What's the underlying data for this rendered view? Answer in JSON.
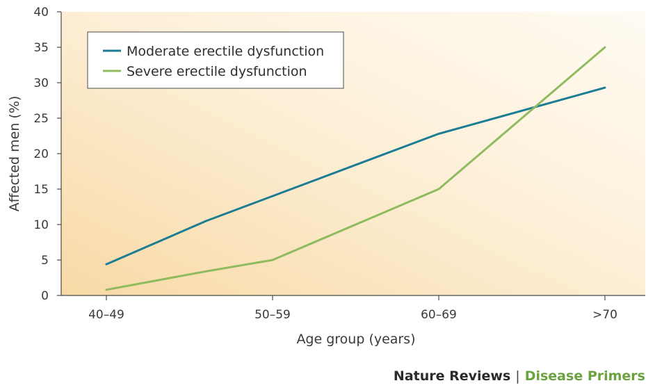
{
  "chart_data": {
    "type": "line",
    "categories": [
      "40–49",
      "50–59",
      "60–69",
      ">70"
    ],
    "xlabel": "Age group (years)",
    "ylabel": "Affected men (%)",
    "ylim": [
      0,
      40
    ],
    "yticks": [
      0,
      5,
      10,
      15,
      20,
      25,
      30,
      35,
      40
    ],
    "grid": false,
    "legend_position": "top-left",
    "series": [
      {
        "name": "Moderate erectile dysfunction",
        "color": "#1b7d93",
        "points": [
          [
            0,
            4.4
          ],
          [
            0.6,
            10.5
          ],
          [
            2.0,
            22.8
          ],
          [
            3.0,
            29.3
          ]
        ]
      },
      {
        "name": "Severe erectile dysfunction",
        "color": "#8dbb5d",
        "points": [
          [
            0,
            0.8
          ],
          [
            0.6,
            3.4
          ],
          [
            1.0,
            5.0
          ],
          [
            2.0,
            15.0
          ],
          [
            3.0,
            35.0
          ]
        ]
      }
    ]
  },
  "footer": {
    "journal": "Nature Reviews",
    "separator": "|",
    "series_name": "Disease Primers"
  }
}
